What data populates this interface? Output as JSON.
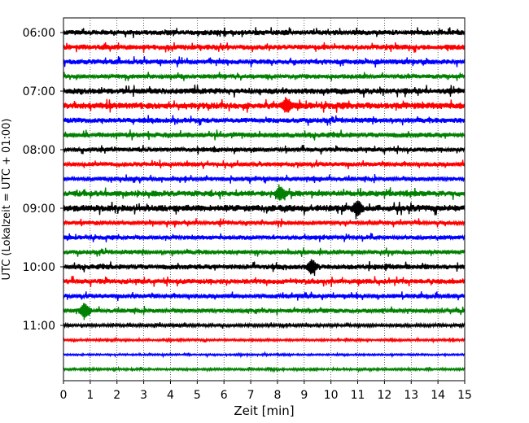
{
  "chart_data": {
    "type": "line",
    "title": "",
    "xlabel": "Zeit  [min]",
    "ylabel": "UTC (Lokalzeit = UTC + 01:00)",
    "xlim": [
      0,
      15
    ],
    "x_ticks": [
      "0",
      "1",
      "2",
      "3",
      "4",
      "5",
      "6",
      "7",
      "8",
      "9",
      "10",
      "11",
      "12",
      "13",
      "14",
      "15"
    ],
    "y_ticks": [
      "06:00",
      "07:00",
      "08:00",
      "09:00",
      "10:00",
      "11:00"
    ],
    "grid": "vertical dotted at each minute",
    "trace_interval_min": 15,
    "trace_colors_cycle": [
      "#000000",
      "#ff0000",
      "#0000ff",
      "#008000"
    ],
    "traces": [
      {
        "start": "06:00",
        "color": "#000000",
        "amplitude": 0.35
      },
      {
        "start": "06:15",
        "color": "#ff0000",
        "amplitude": 0.35
      },
      {
        "start": "06:30",
        "color": "#0000ff",
        "amplitude": 0.35
      },
      {
        "start": "06:45",
        "color": "#008000",
        "amplitude": 0.3
      },
      {
        "start": "07:00",
        "color": "#000000",
        "amplitude": 0.4
      },
      {
        "start": "07:15",
        "color": "#ff0000",
        "amplitude": 0.45
      },
      {
        "start": "07:30",
        "color": "#0000ff",
        "amplitude": 0.35
      },
      {
        "start": "07:45",
        "color": "#008000",
        "amplitude": 0.35
      },
      {
        "start": "08:00",
        "color": "#000000",
        "amplitude": 0.3
      },
      {
        "start": "08:15",
        "color": "#ff0000",
        "amplitude": 0.3
      },
      {
        "start": "08:30",
        "color": "#0000ff",
        "amplitude": 0.3
      },
      {
        "start": "08:45",
        "color": "#008000",
        "amplitude": 0.4
      },
      {
        "start": "09:00",
        "color": "#000000",
        "amplitude": 0.45
      },
      {
        "start": "09:15",
        "color": "#ff0000",
        "amplitude": 0.3
      },
      {
        "start": "09:30",
        "color": "#0000ff",
        "amplitude": 0.3
      },
      {
        "start": "09:45",
        "color": "#008000",
        "amplitude": 0.3
      },
      {
        "start": "10:00",
        "color": "#000000",
        "amplitude": 0.35
      },
      {
        "start": "10:15",
        "color": "#ff0000",
        "amplitude": 0.35
      },
      {
        "start": "10:30",
        "color": "#0000ff",
        "amplitude": 0.3
      },
      {
        "start": "10:45",
        "color": "#008000",
        "amplitude": 0.3
      },
      {
        "start": "11:00",
        "color": "#000000",
        "amplitude": 0.2
      },
      {
        "start": "11:15",
        "color": "#ff0000",
        "amplitude": 0.15
      },
      {
        "start": "11:30",
        "color": "#0000ff",
        "amplitude": 0.12
      },
      {
        "start": "11:45",
        "color": "#008000",
        "amplitude": 0.15
      }
    ],
    "events": [
      {
        "start": "07:15",
        "minute": 8.35
      },
      {
        "start": "08:45",
        "minute": 8.1
      },
      {
        "start": "09:00",
        "minute": 11.0
      },
      {
        "start": "10:00",
        "minute": 9.3
      },
      {
        "start": "10:45",
        "minute": 0.8
      }
    ]
  }
}
